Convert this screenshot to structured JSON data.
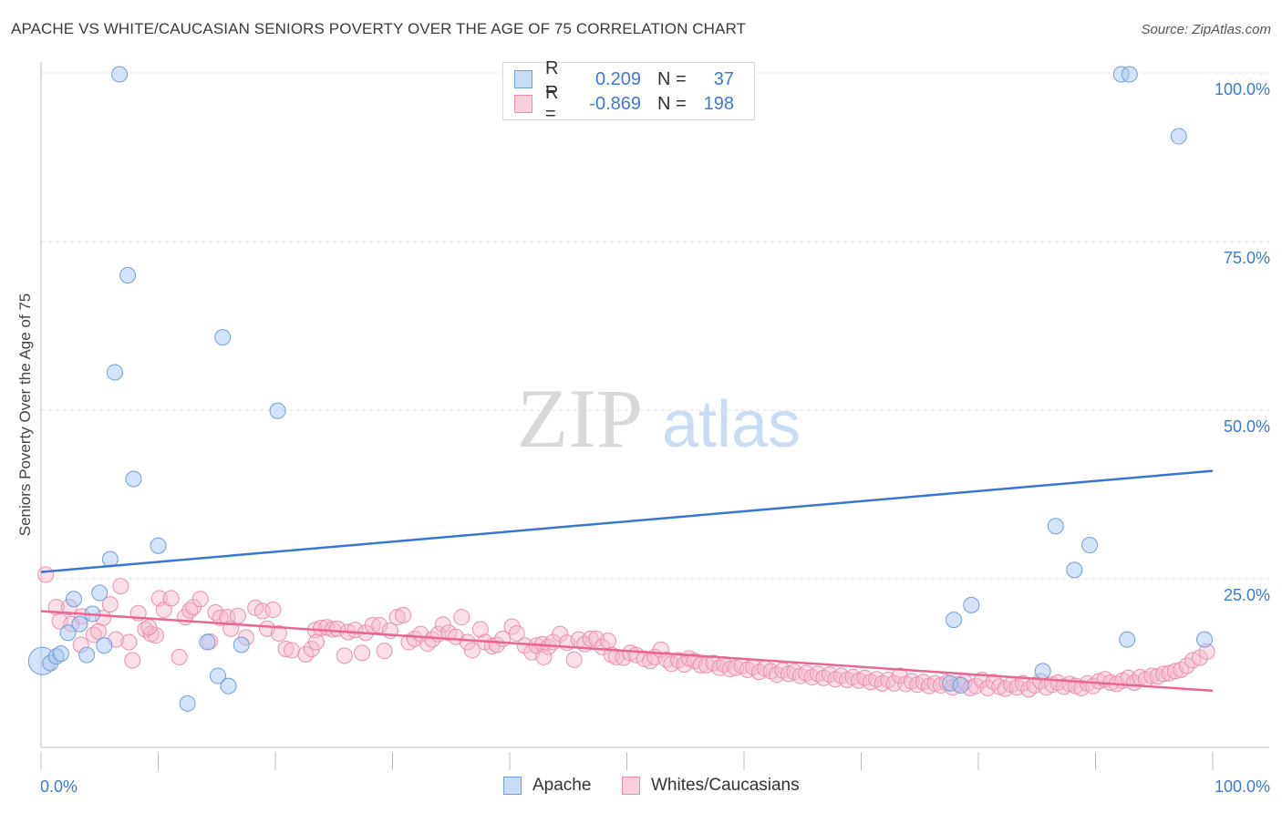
{
  "title": "APACHE VS WHITE/CAUCASIAN SENIORS POVERTY OVER THE AGE OF 75 CORRELATION CHART",
  "source": "Source: ZipAtlas.com",
  "watermark": {
    "zip": "ZIP",
    "atlas": "atlas"
  },
  "colors": {
    "apache_fill": "#aac8f0",
    "apache_stroke": "#6f9fdc",
    "apache_line": "#3a76cf",
    "white_fill": "#f7b8cc",
    "white_stroke": "#ec8fae",
    "white_line": "#e8668f",
    "tick_label": "#3c78d8",
    "grid": "#dddddd"
  },
  "legend": {
    "rows": [
      {
        "r_label": "R =",
        "r_value": "0.209",
        "n_label": "N =",
        "n_value": "37"
      },
      {
        "r_label": "R =",
        "r_value": "-0.869",
        "n_label": "N =",
        "n_value": "198"
      }
    ],
    "bottom": [
      "Apache",
      "Whites/Caucasians"
    ]
  },
  "chart_data": {
    "type": "scatter",
    "title": "APACHE VS WHITE/CAUCASIAN SENIORS POVERTY OVER THE AGE OF 75 CORRELATION CHART",
    "xlabel": "",
    "ylabel": "Seniors Poverty Over the Age of 75",
    "xlim": [
      0,
      100
    ],
    "ylim": [
      0,
      100
    ],
    "x_tick_labels": [
      "0.0%",
      "100.0%"
    ],
    "y_tick_labels": [
      "100.0%",
      "75.0%",
      "50.0%",
      "25.0%"
    ],
    "y_ticks": [
      100,
      75,
      50,
      25
    ],
    "grid": true,
    "legend_position": "top-center",
    "series": [
      {
        "name": "Apache",
        "r": 0.209,
        "n": 37,
        "trend": [
          [
            0,
            26.0
          ],
          [
            100,
            41.0
          ]
        ],
        "points": [
          [
            0.1,
            12.8
          ],
          [
            0.8,
            12.5
          ],
          [
            1.3,
            13.5
          ],
          [
            1.7,
            13.9
          ],
          [
            2.3,
            17.0
          ],
          [
            2.8,
            22.0
          ],
          [
            3.3,
            18.3
          ],
          [
            3.9,
            13.7
          ],
          [
            4.4,
            19.8
          ],
          [
            5.0,
            22.9
          ],
          [
            5.4,
            15.1
          ],
          [
            5.9,
            27.9
          ],
          [
            6.3,
            55.6
          ],
          [
            6.7,
            99.8
          ],
          [
            7.4,
            70.0
          ],
          [
            7.9,
            39.8
          ],
          [
            10.0,
            29.9
          ],
          [
            12.5,
            6.5
          ],
          [
            14.2,
            15.6
          ],
          [
            15.1,
            10.6
          ],
          [
            15.5,
            60.8
          ],
          [
            16.0,
            9.1
          ],
          [
            17.1,
            15.2
          ],
          [
            20.2,
            49.9
          ],
          [
            77.9,
            18.9
          ],
          [
            79.4,
            21.1
          ],
          [
            85.5,
            11.3
          ],
          [
            86.6,
            32.8
          ],
          [
            88.2,
            26.3
          ],
          [
            89.5,
            30.0
          ],
          [
            92.2,
            99.8
          ],
          [
            92.9,
            99.8
          ],
          [
            92.7,
            16.0
          ],
          [
            97.1,
            90.6
          ],
          [
            99.3,
            16.0
          ],
          [
            77.6,
            9.5
          ],
          [
            78.5,
            9.2
          ]
        ]
      },
      {
        "name": "Whites/Caucasians",
        "r": -0.869,
        "n": 198,
        "trend": [
          [
            0,
            20.2
          ],
          [
            100,
            8.4
          ]
        ],
        "points": [
          [
            0.4,
            25.6
          ],
          [
            1.3,
            20.8
          ],
          [
            1.6,
            18.7
          ],
          [
            2.4,
            20.8
          ],
          [
            2.6,
            18.3
          ],
          [
            3.4,
            15.2
          ],
          [
            3.5,
            19.4
          ],
          [
            4.5,
            16.7
          ],
          [
            4.9,
            17.2
          ],
          [
            5.3,
            19.2
          ],
          [
            5.9,
            21.2
          ],
          [
            6.4,
            16.0
          ],
          [
            6.8,
            23.9
          ],
          [
            7.5,
            15.6
          ],
          [
            7.8,
            12.9
          ],
          [
            8.3,
            19.9
          ],
          [
            8.9,
            17.5
          ],
          [
            9.4,
            16.8
          ],
          [
            9.8,
            16.6
          ],
          [
            10.1,
            22.1
          ],
          [
            10.5,
            20.4
          ],
          [
            11.1,
            22.1
          ],
          [
            11.8,
            13.4
          ],
          [
            12.3,
            19.3
          ],
          [
            12.7,
            20.3
          ],
          [
            13.0,
            20.8
          ],
          [
            13.6,
            22.0
          ],
          [
            14.4,
            15.7
          ],
          [
            14.9,
            20.0
          ],
          [
            15.3,
            19.2
          ],
          [
            15.9,
            19.3
          ],
          [
            16.2,
            17.6
          ],
          [
            16.8,
            19.5
          ],
          [
            17.5,
            16.3
          ],
          [
            18.3,
            20.7
          ],
          [
            18.9,
            20.2
          ],
          [
            19.3,
            17.6
          ],
          [
            19.8,
            20.4
          ],
          [
            20.3,
            16.9
          ],
          [
            20.9,
            14.6
          ],
          [
            21.4,
            14.4
          ],
          [
            22.6,
            13.8
          ],
          [
            23.1,
            14.6
          ],
          [
            23.4,
            17.4
          ],
          [
            23.9,
            17.7
          ],
          [
            24.4,
            17.8
          ],
          [
            24.9,
            17.5
          ],
          [
            25.3,
            17.6
          ],
          [
            25.9,
            13.6
          ],
          [
            26.2,
            17.1
          ],
          [
            26.8,
            17.4
          ],
          [
            27.4,
            14.0
          ],
          [
            27.7,
            17.0
          ],
          [
            28.3,
            18.1
          ],
          [
            28.9,
            18.1
          ],
          [
            29.3,
            14.3
          ],
          [
            29.8,
            17.3
          ],
          [
            30.4,
            19.3
          ],
          [
            30.9,
            19.6
          ],
          [
            31.4,
            15.6
          ],
          [
            31.9,
            16.1
          ],
          [
            32.4,
            16.8
          ],
          [
            33.0,
            15.4
          ],
          [
            33.4,
            16.0
          ],
          [
            33.9,
            16.8
          ],
          [
            34.3,
            18.2
          ],
          [
            34.8,
            17.0
          ],
          [
            35.4,
            16.4
          ],
          [
            35.9,
            19.3
          ],
          [
            36.4,
            15.6
          ],
          [
            36.8,
            14.4
          ],
          [
            37.5,
            17.5
          ],
          [
            37.9,
            15.6
          ],
          [
            38.5,
            15.0
          ],
          [
            38.9,
            15.2
          ],
          [
            39.4,
            16.1
          ],
          [
            40.2,
            17.9
          ],
          [
            40.6,
            16.9
          ],
          [
            41.3,
            15.1
          ],
          [
            41.9,
            14.1
          ],
          [
            42.3,
            15.1
          ],
          [
            42.8,
            15.3
          ],
          [
            43.3,
            14.9
          ],
          [
            43.7,
            15.6
          ],
          [
            44.3,
            16.8
          ],
          [
            44.9,
            15.5
          ],
          [
            45.5,
            13.0
          ],
          [
            45.9,
            16.0
          ],
          [
            46.4,
            15.3
          ],
          [
            46.9,
            16.1
          ],
          [
            47.4,
            16.1
          ],
          [
            47.9,
            14.9
          ],
          [
            48.4,
            15.8
          ],
          [
            48.7,
            13.7
          ],
          [
            49.1,
            13.4
          ],
          [
            49.7,
            13.3
          ],
          [
            50.3,
            14.0
          ],
          [
            50.8,
            13.7
          ],
          [
            51.5,
            13.1
          ],
          [
            52.0,
            12.8
          ],
          [
            52.4,
            13.4
          ],
          [
            52.9,
            14.5
          ],
          [
            53.4,
            13.0
          ],
          [
            53.8,
            12.4
          ],
          [
            54.4,
            12.9
          ],
          [
            54.9,
            12.3
          ],
          [
            55.3,
            13.2
          ],
          [
            55.8,
            12.8
          ],
          [
            56.3,
            12.2
          ],
          [
            56.8,
            12.2
          ],
          [
            57.4,
            12.5
          ],
          [
            57.9,
            11.8
          ],
          [
            58.3,
            12.3
          ],
          [
            58.8,
            11.6
          ],
          [
            59.3,
            11.8
          ],
          [
            59.8,
            12.1
          ],
          [
            60.3,
            11.5
          ],
          [
            60.8,
            11.9
          ],
          [
            61.3,
            11.2
          ],
          [
            61.8,
            11.7
          ],
          [
            62.3,
            11.3
          ],
          [
            62.8,
            10.8
          ],
          [
            63.3,
            11.4
          ],
          [
            63.8,
            10.9
          ],
          [
            64.3,
            11.2
          ],
          [
            64.8,
            10.6
          ],
          [
            65.3,
            11.0
          ],
          [
            65.8,
            10.4
          ],
          [
            66.3,
            10.9
          ],
          [
            66.8,
            10.3
          ],
          [
            67.3,
            10.8
          ],
          [
            67.8,
            10.1
          ],
          [
            68.3,
            10.6
          ],
          [
            68.8,
            10.0
          ],
          [
            69.3,
            10.4
          ],
          [
            69.8,
            9.9
          ],
          [
            70.3,
            10.3
          ],
          [
            70.8,
            9.7
          ],
          [
            71.3,
            10.1
          ],
          [
            71.8,
            9.5
          ],
          [
            72.3,
            10.0
          ],
          [
            72.8,
            9.5
          ],
          [
            73.3,
            10.6
          ],
          [
            73.8,
            9.4
          ],
          [
            74.3,
            9.8
          ],
          [
            74.8,
            9.3
          ],
          [
            75.3,
            9.7
          ],
          [
            75.8,
            9.1
          ],
          [
            76.3,
            9.5
          ],
          [
            76.8,
            9.2
          ],
          [
            77.3,
            9.6
          ],
          [
            77.8,
            8.9
          ],
          [
            78.3,
            9.4
          ],
          [
            78.8,
            9.7
          ],
          [
            79.3,
            8.8
          ],
          [
            79.8,
            9.1
          ],
          [
            80.3,
            10.0
          ],
          [
            80.8,
            8.8
          ],
          [
            81.3,
            9.7
          ],
          [
            81.8,
            9.0
          ],
          [
            82.3,
            8.7
          ],
          [
            82.8,
            9.3
          ],
          [
            83.3,
            8.9
          ],
          [
            83.8,
            9.5
          ],
          [
            84.3,
            8.6
          ],
          [
            84.8,
            9.2
          ],
          [
            85.3,
            9.8
          ],
          [
            85.8,
            8.9
          ],
          [
            86.3,
            9.3
          ],
          [
            86.8,
            9.6
          ],
          [
            87.3,
            9.0
          ],
          [
            87.8,
            9.4
          ],
          [
            88.3,
            9.1
          ],
          [
            88.8,
            8.8
          ],
          [
            89.3,
            9.5
          ],
          [
            89.8,
            9.1
          ],
          [
            90.3,
            9.8
          ],
          [
            90.8,
            10.1
          ],
          [
            91.3,
            9.6
          ],
          [
            91.8,
            9.4
          ],
          [
            92.3,
            9.9
          ],
          [
            92.8,
            10.3
          ],
          [
            93.3,
            9.6
          ],
          [
            93.8,
            10.4
          ],
          [
            94.3,
            10.1
          ],
          [
            94.8,
            10.6
          ],
          [
            95.3,
            10.5
          ],
          [
            95.8,
            10.9
          ],
          [
            96.3,
            11.0
          ],
          [
            96.8,
            11.3
          ],
          [
            97.3,
            11.5
          ],
          [
            97.8,
            12.1
          ],
          [
            98.3,
            12.9
          ],
          [
            98.9,
            13.3
          ],
          [
            99.5,
            14.2
          ],
          [
            42.9,
            13.4
          ],
          [
            23.5,
            15.6
          ],
          [
            9.2,
            17.8
          ]
        ]
      }
    ]
  }
}
